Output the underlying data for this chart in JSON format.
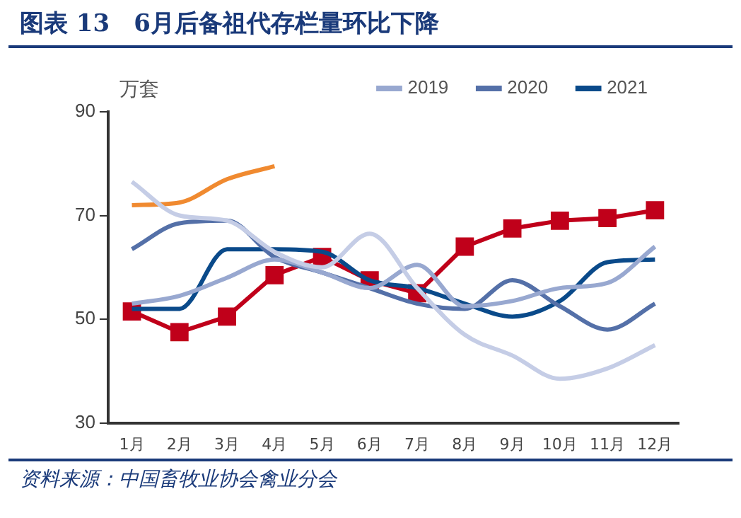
{
  "chart_data": {
    "type": "line",
    "title": "图表 13　6月后备祖代存栏量环比下降",
    "ylabel": "万套",
    "annotations": [
      "资料来源：中国畜牧业协会禽业分会"
    ],
    "categories": [
      "1月",
      "2月",
      "3月",
      "4月",
      "5月",
      "6月",
      "7月",
      "8月",
      "9月",
      "10月",
      "11月",
      "12月"
    ],
    "ylim": [
      30,
      90
    ],
    "yticks": [
      30,
      50,
      70,
      90
    ],
    "grid": false,
    "legend": "top",
    "series": [
      {
        "color": "#c5cde6",
        "marker": "none",
        "values": [
          76.5,
          70,
          69,
          63,
          60,
          66.5,
          56,
          47,
          43,
          38.5,
          40.5,
          45
        ]
      },
      {
        "name": "2019",
        "color": "#98a8d0",
        "marker": "none",
        "values": [
          53,
          54.5,
          58,
          61.5,
          59,
          56,
          60.5,
          52.5,
          53.5,
          56,
          57,
          64
        ]
      },
      {
        "name": "2020",
        "color": "#5470a8",
        "marker": "none",
        "values": [
          63.5,
          68.5,
          69,
          62,
          59,
          56,
          53,
          52,
          57.5,
          52.5,
          48,
          53
        ]
      },
      {
        "name": "2021",
        "color": "#0a4a8a",
        "marker": "none",
        "values": [
          52,
          52,
          63.5,
          63.5,
          63,
          57.5,
          56,
          53,
          50.5,
          53.5,
          61,
          61.5
        ]
      },
      {
        "color": "#f08a30",
        "marker": "none",
        "values": [
          72,
          72.5,
          77,
          79.5,
          null,
          null,
          null,
          null,
          null,
          null,
          null,
          null
        ]
      },
      {
        "color": "#c0001a",
        "marker": "square",
        "values": [
          51.5,
          47.5,
          50.5,
          58.5,
          62,
          57.5,
          55,
          64,
          67.5,
          69,
          69.5,
          71
        ]
      }
    ]
  }
}
